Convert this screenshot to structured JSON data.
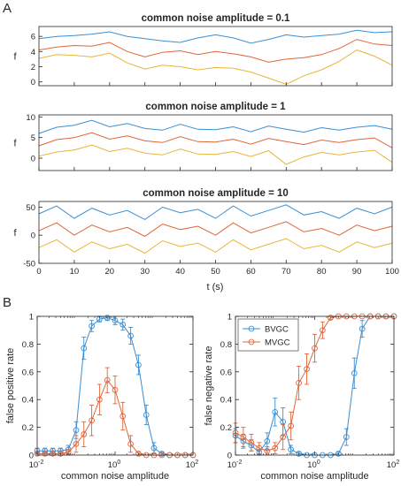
{
  "panel_labels": [
    "A",
    "B"
  ],
  "colors": {
    "blue": "#3a8fd4",
    "red": "#e0653a",
    "yellow": "#e8b53a",
    "axis": "#262626"
  },
  "x_tick_labels_time": [
    "0",
    "10",
    "20",
    "30",
    "40",
    "50",
    "60",
    "70",
    "80",
    "90",
    "100"
  ],
  "time_axis_label": "t (s)",
  "ts_ylabel": "f",
  "amp_tick_labels": [
    "10",
    "-2",
    "10",
    "0",
    "10",
    "2"
  ],
  "chart_data": [
    {
      "type": "line",
      "title": "common noise amplitude = 0.1",
      "xlabel": "",
      "ylabel": "f",
      "xlim": [
        0,
        100
      ],
      "ylim": [
        -0.5,
        7.3
      ],
      "yticks": [
        0,
        2,
        4,
        6
      ],
      "grid": false,
      "series": [
        {
          "x": [
            0,
            5,
            10,
            15,
            20,
            25,
            30,
            35,
            40,
            45,
            50,
            55,
            60,
            65,
            70,
            75,
            80,
            85,
            90,
            95,
            100
          ],
          "values": [
            5.7,
            6.0,
            6.1,
            6.3,
            6.6,
            6.0,
            5.7,
            5.4,
            5.2,
            5.8,
            6.2,
            5.8,
            5.1,
            5.6,
            6.2,
            5.9,
            6.1,
            6.3,
            6.8,
            6.5,
            6.6
          ]
        },
        {
          "x": [
            0,
            5,
            10,
            15,
            20,
            25,
            30,
            35,
            40,
            45,
            50,
            55,
            60,
            65,
            70,
            75,
            80,
            85,
            90,
            95,
            100
          ],
          "values": [
            4.2,
            4.6,
            4.8,
            4.7,
            5.2,
            4.0,
            3.3,
            3.9,
            4.1,
            3.6,
            4.0,
            3.7,
            3.3,
            2.6,
            3.0,
            3.2,
            3.6,
            4.4,
            5.6,
            5.0,
            4.8
          ]
        },
        {
          "x": [
            0,
            5,
            10,
            15,
            20,
            25,
            30,
            35,
            40,
            45,
            50,
            55,
            60,
            65,
            70,
            75,
            80,
            85,
            90,
            95,
            100
          ],
          "values": [
            3.1,
            3.6,
            3.5,
            3.3,
            3.8,
            2.5,
            1.7,
            2.2,
            2.0,
            1.6,
            1.9,
            1.8,
            1.3,
            0.5,
            -0.3,
            0.8,
            1.6,
            2.7,
            4.2,
            3.4,
            2.2
          ]
        }
      ]
    },
    {
      "type": "line",
      "title": "common noise amplitude = 1",
      "xlabel": "",
      "ylabel": "f",
      "xlim": [
        0,
        100
      ],
      "ylim": [
        -3,
        10.5
      ],
      "yticks": [
        0,
        5,
        10
      ],
      "grid": false,
      "series": [
        {
          "x": [
            0,
            5,
            10,
            15,
            20,
            25,
            30,
            35,
            40,
            45,
            50,
            55,
            60,
            65,
            70,
            75,
            80,
            85,
            90,
            95,
            100
          ],
          "values": [
            6.0,
            7.5,
            8.0,
            9.2,
            7.6,
            8.4,
            7.2,
            6.8,
            8.2,
            7.0,
            6.9,
            7.6,
            6.4,
            7.8,
            7.0,
            6.3,
            7.4,
            6.8,
            7.5,
            7.9,
            7.0
          ]
        },
        {
          "x": [
            0,
            5,
            10,
            15,
            20,
            25,
            30,
            35,
            40,
            45,
            50,
            55,
            60,
            65,
            70,
            75,
            80,
            85,
            90,
            95,
            100
          ],
          "values": [
            3.0,
            4.5,
            5.0,
            6.2,
            4.6,
            5.4,
            4.2,
            3.8,
            5.2,
            4.0,
            3.9,
            4.6,
            3.4,
            4.8,
            4.0,
            3.3,
            4.4,
            3.8,
            4.5,
            4.9,
            2.5
          ]
        },
        {
          "x": [
            0,
            5,
            10,
            15,
            20,
            25,
            30,
            35,
            40,
            45,
            50,
            55,
            60,
            65,
            70,
            75,
            80,
            85,
            90,
            95,
            100
          ],
          "values": [
            0.5,
            1.5,
            2.0,
            3.2,
            1.6,
            2.4,
            1.2,
            0.8,
            2.2,
            1.0,
            0.9,
            1.6,
            0.4,
            1.8,
            -1.5,
            0.3,
            1.4,
            0.8,
            1.5,
            1.9,
            -1.0
          ]
        }
      ]
    },
    {
      "type": "line",
      "title": "common noise amplitude = 10",
      "xlabel": "t (s)",
      "ylabel": "f",
      "xlim": [
        0,
        100
      ],
      "ylim": [
        -50,
        60
      ],
      "yticks": [
        -50,
        0,
        50
      ],
      "grid": false,
      "series": [
        {
          "x": [
            0,
            5,
            10,
            15,
            20,
            25,
            30,
            35,
            40,
            45,
            50,
            55,
            60,
            65,
            70,
            75,
            80,
            85,
            90,
            95,
            100
          ],
          "values": [
            38,
            52,
            30,
            48,
            36,
            44,
            28,
            50,
            40,
            46,
            30,
            52,
            34,
            44,
            54,
            36,
            42,
            30,
            48,
            38,
            50
          ]
        },
        {
          "x": [
            0,
            5,
            10,
            15,
            20,
            25,
            30,
            35,
            40,
            45,
            50,
            55,
            60,
            65,
            70,
            75,
            80,
            85,
            90,
            95,
            100
          ],
          "values": [
            8,
            22,
            0,
            18,
            6,
            14,
            -2,
            20,
            10,
            16,
            0,
            22,
            4,
            14,
            24,
            6,
            12,
            0,
            18,
            8,
            16
          ]
        },
        {
          "x": [
            0,
            5,
            10,
            15,
            20,
            25,
            30,
            35,
            40,
            45,
            50,
            55,
            60,
            65,
            70,
            75,
            80,
            85,
            90,
            95,
            100
          ],
          "values": [
            -22,
            -8,
            -30,
            -12,
            -24,
            -16,
            -32,
            -10,
            -20,
            -14,
            -30,
            -8,
            -26,
            -16,
            -6,
            -24,
            -18,
            -30,
            -12,
            -22,
            -14
          ]
        }
      ]
    },
    {
      "type": "line",
      "title": "",
      "xlabel": "common noise amplitude",
      "ylabel": "false positive rate",
      "xscale": "log",
      "xlim": [
        0.01,
        100
      ],
      "ylim": [
        0,
        1
      ],
      "yticks": [
        0,
        0.2,
        0.4,
        0.6,
        0.8,
        1
      ],
      "grid": false,
      "series": [
        {
          "x": [
            0.01,
            0.0158,
            0.0251,
            0.0398,
            0.0631,
            0.1,
            0.158,
            0.251,
            0.398,
            0.631,
            1,
            1.58,
            2.51,
            3.98,
            6.31,
            10,
            15.8,
            25.1,
            39.8,
            63.1,
            100
          ],
          "values": [
            0.03,
            0.03,
            0.03,
            0.03,
            0.04,
            0.18,
            0.77,
            0.93,
            0.98,
            0.99,
            0.97,
            0.94,
            0.86,
            0.65,
            0.29,
            0.05,
            0.01,
            0,
            0,
            0,
            0
          ],
          "errors": [
            0.02,
            0.02,
            0.02,
            0.02,
            0.03,
            0.06,
            0.08,
            0.04,
            0.02,
            0.02,
            0.03,
            0.04,
            0.06,
            0.07,
            0.07,
            0.04,
            0.01,
            0,
            0,
            0,
            0
          ]
        },
        {
          "x": [
            0.01,
            0.0158,
            0.0251,
            0.0398,
            0.0631,
            0.1,
            0.158,
            0.251,
            0.398,
            0.631,
            1,
            1.58,
            2.51,
            3.98,
            6.31,
            10,
            15.8,
            25.1,
            39.8,
            63.1,
            100
          ],
          "values": [
            0.01,
            0.01,
            0.01,
            0.01,
            0.02,
            0.08,
            0.15,
            0.25,
            0.4,
            0.54,
            0.47,
            0.28,
            0.08,
            0.01,
            0,
            0,
            0,
            0,
            0,
            0,
            0
          ],
          "errors": [
            0.01,
            0.01,
            0.01,
            0.01,
            0.02,
            0.06,
            0.09,
            0.11,
            0.11,
            0.09,
            0.1,
            0.1,
            0.06,
            0.01,
            0,
            0,
            0,
            0,
            0,
            0,
            0
          ]
        }
      ]
    },
    {
      "type": "line",
      "title": "",
      "xlabel": "common noise amplitude",
      "ylabel": "false negative rate",
      "xscale": "log",
      "xlim": [
        0.01,
        100
      ],
      "ylim": [
        0,
        1
      ],
      "yticks": [
        0,
        0.2,
        0.4,
        0.6,
        0.8,
        1
      ],
      "grid": false,
      "legend": "top-left",
      "series": [
        {
          "name": "BVGC",
          "x": [
            0.01,
            0.0158,
            0.0251,
            0.0398,
            0.0631,
            0.1,
            0.158,
            0.251,
            0.398,
            0.631,
            1,
            1.58,
            2.51,
            3.98,
            6.31,
            10,
            15.8,
            25.1,
            39.8,
            63.1,
            100
          ],
          "values": [
            0.14,
            0.1,
            0.07,
            0.02,
            0.1,
            0.31,
            0.24,
            0.04,
            0.01,
            0,
            0,
            0,
            0,
            0.01,
            0.13,
            0.59,
            0.91,
            1,
            1,
            1,
            1
          ],
          "errors": [
            0.05,
            0.05,
            0.04,
            0.02,
            0.06,
            0.1,
            0.1,
            0.03,
            0.01,
            0,
            0,
            0,
            0,
            0.01,
            0.06,
            0.11,
            0.06,
            0,
            0,
            0,
            0
          ]
        },
        {
          "name": "MVGC",
          "x": [
            0.01,
            0.0158,
            0.0251,
            0.0398,
            0.0631,
            0.1,
            0.158,
            0.251,
            0.398,
            0.631,
            1,
            1.58,
            2.51,
            3.98,
            6.31,
            10,
            15.8,
            25.1,
            39.8,
            63.1,
            100
          ],
          "values": [
            0.16,
            0.13,
            0.09,
            0.05,
            0.03,
            0.05,
            0.13,
            0.21,
            0.52,
            0.62,
            0.77,
            0.9,
            0.99,
            1,
            1,
            1,
            1,
            1,
            1,
            1,
            1
          ],
          "errors": [
            0.07,
            0.07,
            0.06,
            0.04,
            0.03,
            0.04,
            0.09,
            0.1,
            0.12,
            0.11,
            0.1,
            0.06,
            0.01,
            0,
            0,
            0,
            0,
            0,
            0,
            0,
            0
          ]
        }
      ]
    }
  ]
}
